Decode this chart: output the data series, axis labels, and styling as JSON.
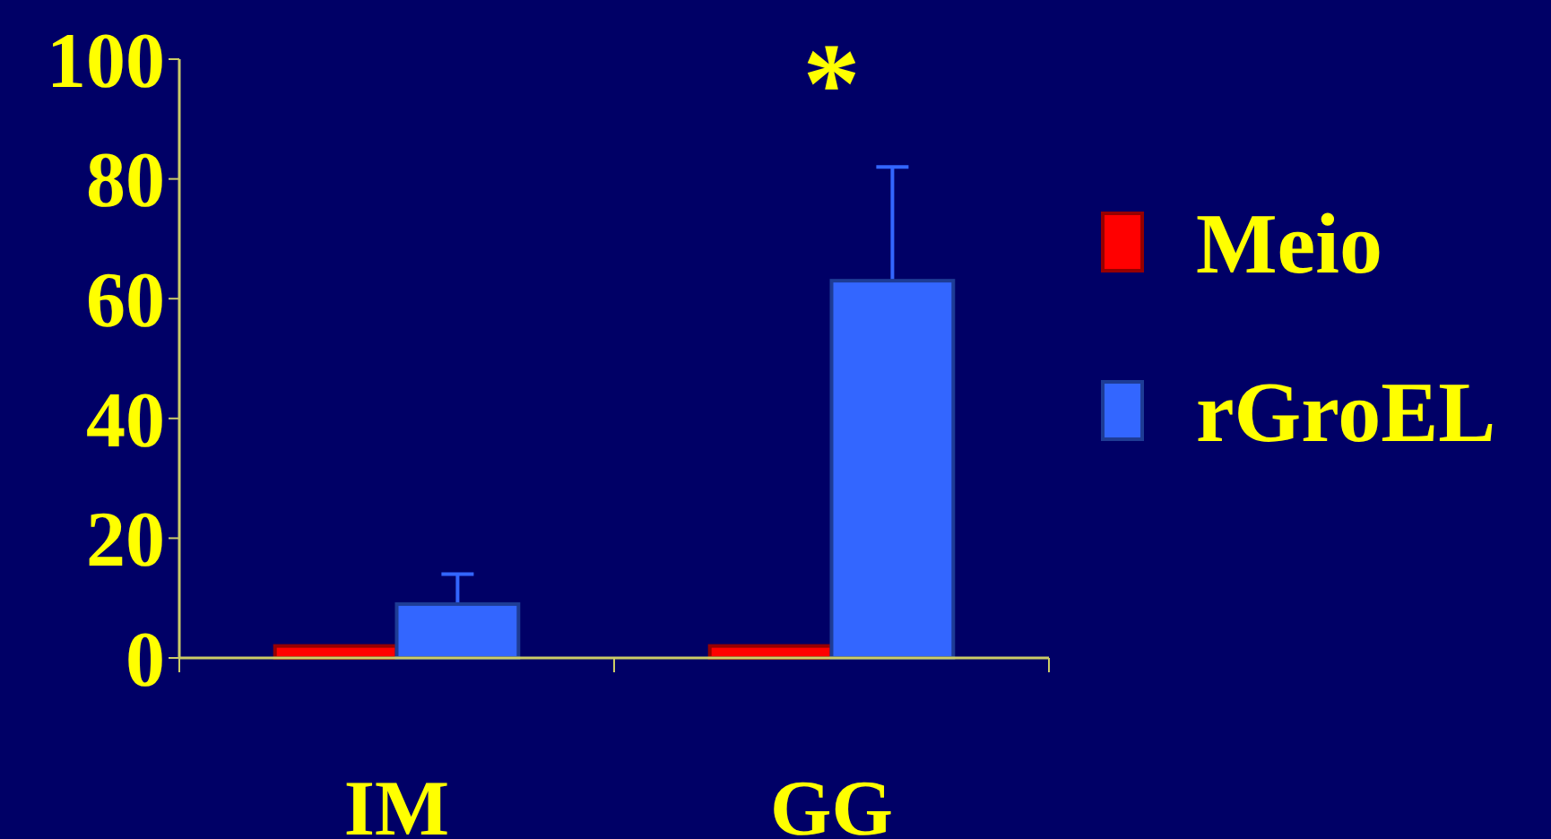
{
  "chart_data": {
    "type": "bar",
    "categories": [
      "IM",
      "GG"
    ],
    "series": [
      {
        "name": "Meio",
        "color": "#ff0000",
        "values": [
          2,
          2
        ]
      },
      {
        "name": "rGroEL",
        "color": "#3366ff",
        "values": [
          9,
          63
        ],
        "errors": [
          [
            9,
            14
          ],
          [
            63,
            82
          ]
        ]
      }
    ],
    "ylim": [
      0,
      100
    ],
    "yticks": [
      0,
      20,
      40,
      60,
      80,
      100
    ],
    "grid": false,
    "legend": "right",
    "annotations": [
      "*"
    ]
  }
}
